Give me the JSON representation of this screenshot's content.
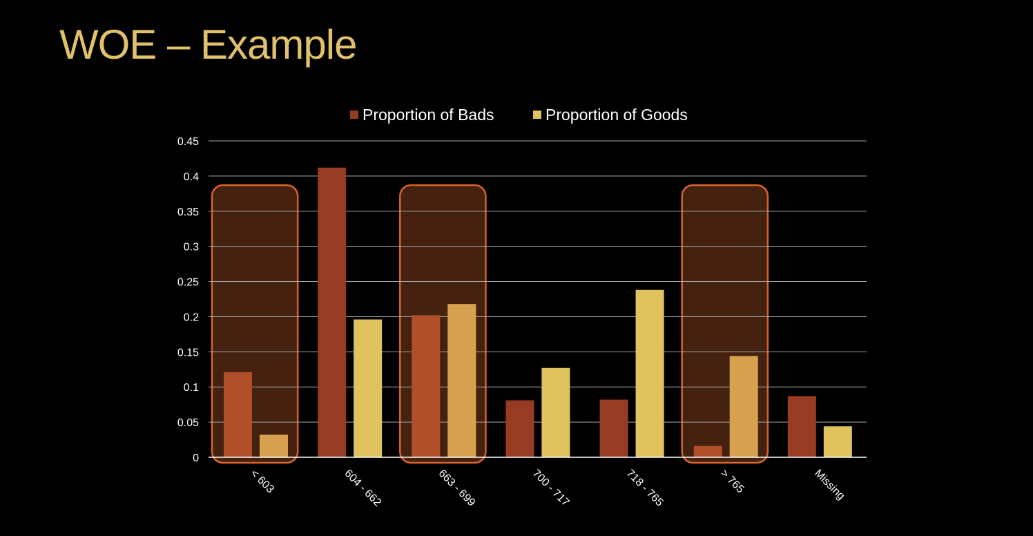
{
  "slide": {
    "title": "WOE – Example"
  },
  "colors": {
    "background": "#000000",
    "title": "#e1c16b",
    "bads": "#973b22",
    "goods": "#e0c35f",
    "bads_highlighted": "#b14f2a",
    "goods_highlighted": "#d8a150",
    "highlight_fill": "#45220f",
    "highlight_border": "#d9622e",
    "gridline": "#a8a8a8",
    "axis_text": "#ffffff"
  },
  "chart_data": {
    "type": "bar",
    "title": "",
    "xlabel": "",
    "ylabel": "",
    "categories": [
      "< 603",
      "604 - 662",
      "663 - 699",
      "700 - 717",
      "718 - 765",
      "> 765",
      "Missing"
    ],
    "series": [
      {
        "name": "Proportion of Bads",
        "values": [
          0.121,
          0.412,
          0.202,
          0.081,
          0.082,
          0.016,
          0.087
        ]
      },
      {
        "name": "Proportion of Goods",
        "values": [
          0.032,
          0.196,
          0.218,
          0.127,
          0.238,
          0.144,
          0.044
        ]
      }
    ],
    "ylim": [
      0,
      0.45
    ],
    "yticks": [
      "0",
      "0.05",
      "0.1",
      "0.15",
      "0.2",
      "0.25",
      "0.3",
      "0.35",
      "0.4",
      "0.45"
    ],
    "grid": true,
    "legend_position": "top",
    "highlighted_categories": [
      "< 603",
      "663 - 699",
      "> 765"
    ]
  }
}
